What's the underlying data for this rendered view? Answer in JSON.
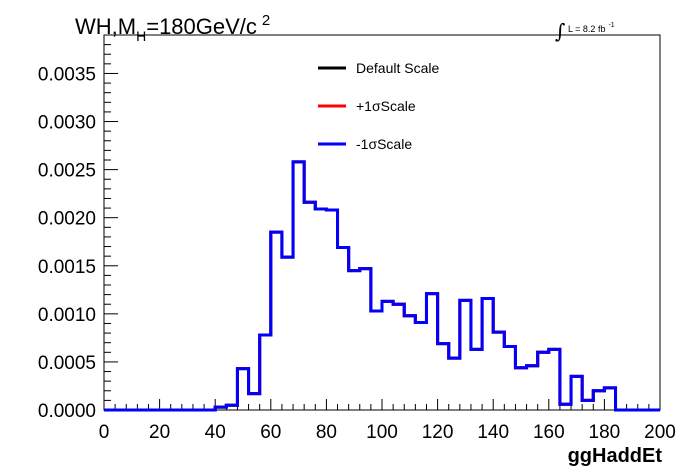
{
  "title": {
    "main": "WH,M",
    "sub": "H",
    "rest": "=180GeV/c",
    "sup": "2"
  },
  "lumi": {
    "integral": "∫",
    "text": "L = 8.2 fb",
    "sup": "-1"
  },
  "chart_data": {
    "type": "line",
    "step": true,
    "xlabel": "ggHaddEt",
    "ylabel": "",
    "xlim": [
      0,
      200
    ],
    "ylim": [
      0,
      0.0039
    ],
    "x_ticks": [
      "0",
      "20",
      "40",
      "60",
      "80",
      "100",
      "120",
      "140",
      "160",
      "180",
      "200"
    ],
    "y_ticks": [
      "0.0000",
      "0.0005",
      "0.0010",
      "0.0015",
      "0.0020",
      "0.0025",
      "0.0030",
      "0.0035"
    ],
    "bin_edges": [
      0,
      4,
      8,
      12,
      16,
      20,
      24,
      28,
      32,
      36,
      40,
      44,
      48,
      52,
      56,
      60,
      64,
      68,
      72,
      76,
      80,
      84,
      88,
      92,
      96,
      100,
      104,
      108,
      112,
      116,
      120,
      124,
      128,
      132,
      136,
      140,
      144,
      148,
      152,
      156,
      160,
      164,
      168,
      172,
      176,
      180,
      184,
      188,
      192,
      196,
      200
    ],
    "series": [
      {
        "name": "Default Scale",
        "color": "#000000",
        "values": [
          0,
          0,
          0,
          0,
          0,
          0,
          0,
          0,
          0,
          0,
          3e-05,
          5e-05,
          0.00043,
          0.00017,
          0.00078,
          0.00185,
          0.00159,
          0.00258,
          0.00216,
          0.00209,
          0.00208,
          0.00169,
          0.00145,
          0.00147,
          0.00103,
          0.00113,
          0.0011,
          0.00098,
          0.00091,
          0.00121,
          0.00069,
          0.00054,
          0.00114,
          0.00063,
          0.00116,
          0.00081,
          0.00066,
          0.00044,
          0.00046,
          0.0006,
          0.00063,
          6e-05,
          0.00035,
          0.0001,
          0.0002,
          0.00023,
          0,
          0,
          0,
          0
        ]
      },
      {
        "name": "+1σScale",
        "color": "#ff0000",
        "values": [
          0,
          0,
          0,
          0,
          0,
          0,
          0,
          0,
          0,
          0,
          3e-05,
          5e-05,
          0.00043,
          0.00017,
          0.00078,
          0.00185,
          0.00159,
          0.00258,
          0.00216,
          0.00209,
          0.00208,
          0.00169,
          0.00145,
          0.00147,
          0.00103,
          0.00113,
          0.0011,
          0.00098,
          0.00091,
          0.00121,
          0.00069,
          0.00054,
          0.00114,
          0.00063,
          0.00116,
          0.00081,
          0.00066,
          0.00044,
          0.00046,
          0.0006,
          0.00063,
          6e-05,
          0.00035,
          0.0001,
          0.0002,
          0.00023,
          0,
          0,
          0,
          0
        ]
      },
      {
        "name": "-1σScale",
        "color": "#0000ff",
        "values": [
          0,
          0,
          0,
          0,
          0,
          0,
          0,
          0,
          0,
          0,
          3e-05,
          5e-05,
          0.00043,
          0.00017,
          0.00078,
          0.00185,
          0.00159,
          0.00258,
          0.00216,
          0.00209,
          0.00208,
          0.00169,
          0.00145,
          0.00147,
          0.00103,
          0.00113,
          0.0011,
          0.00098,
          0.00091,
          0.00121,
          0.00069,
          0.00054,
          0.00114,
          0.00063,
          0.00116,
          0.00081,
          0.00066,
          0.00044,
          0.00046,
          0.0006,
          0.00063,
          6e-05,
          0.00035,
          0.0001,
          0.0002,
          0.00023,
          0,
          0,
          0,
          0
        ]
      }
    ],
    "legend_placement": "top-center",
    "grid": false
  }
}
